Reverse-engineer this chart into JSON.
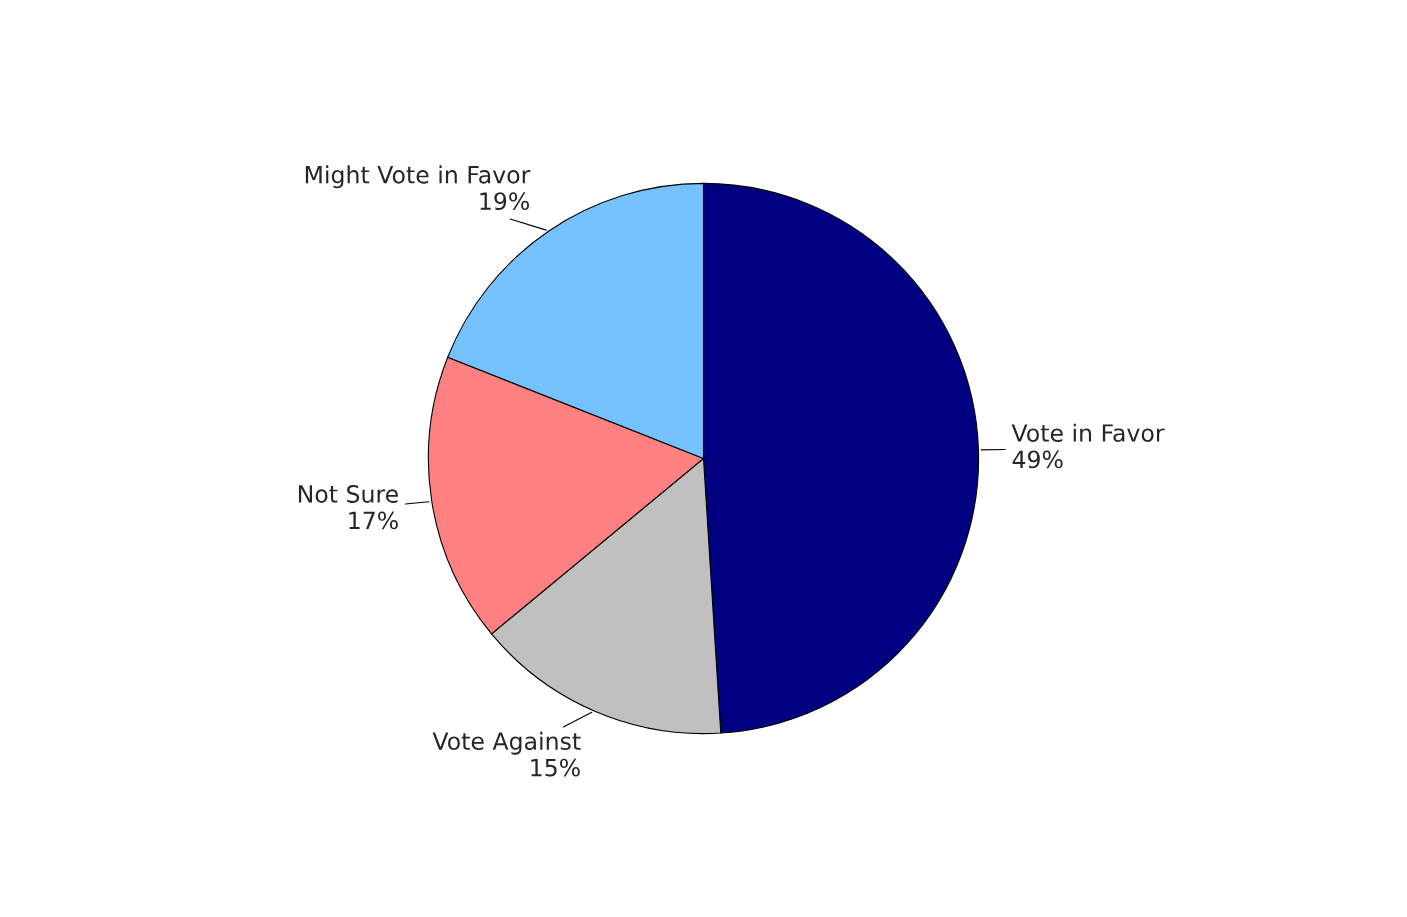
{
  "chart_data": {
    "type": "pie",
    "categories": [
      "Vote in Favor",
      "Vote Against",
      "Not Sure",
      "Might Vote in Favor"
    ],
    "values": [
      49,
      15,
      17,
      19
    ],
    "value_labels": [
      "49%",
      "15%",
      "17%",
      "19%"
    ],
    "colors": [
      "#000080",
      "#c0c0c0",
      "#ff8080",
      "#76c1ff"
    ],
    "legend": false
  }
}
